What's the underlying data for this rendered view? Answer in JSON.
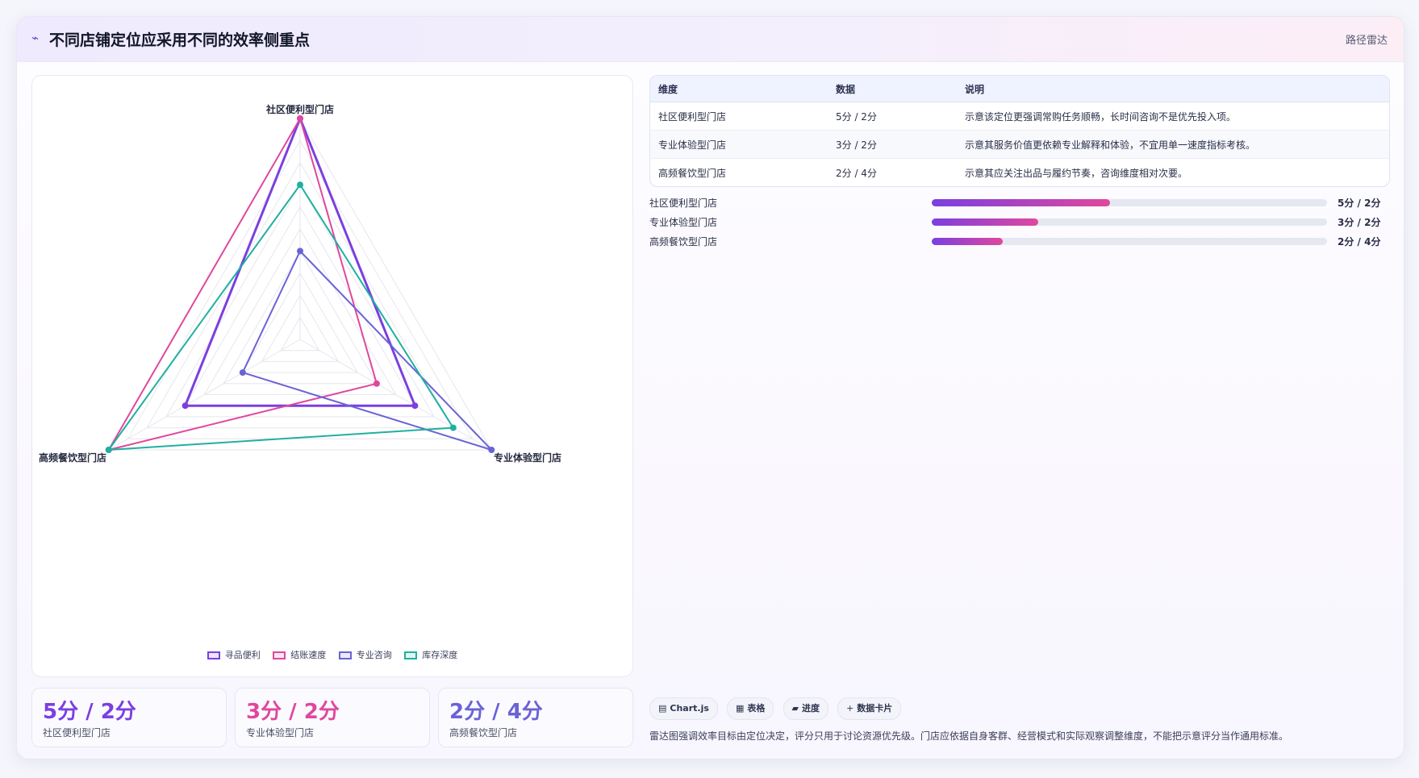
{
  "header": {
    "icon": "activity-icon",
    "title": "不同店铺定位应采用不同的效率侧重点",
    "tag": "路径雷达"
  },
  "chart_data": {
    "type": "radar",
    "axes": [
      "社区便利型门店",
      "专业体验型门店",
      "高频餐饮型门店"
    ],
    "range": [
      0,
      5
    ],
    "rings": 10,
    "series": [
      {
        "name": "寻品便利",
        "color": "#7b3fe0",
        "values": [
          5,
          3,
          3
        ]
      },
      {
        "name": "结账速度",
        "color": "#e0479e",
        "values": [
          5,
          2,
          5
        ]
      },
      {
        "name": "专业咨询",
        "color": "#6a63d6",
        "values": [
          2,
          5,
          1.5
        ]
      },
      {
        "name": "库存深度",
        "color": "#1fb0a0",
        "values": [
          3.5,
          4,
          5
        ]
      }
    ]
  },
  "table": {
    "headers": [
      "维度",
      "数据",
      "说明"
    ],
    "rows": [
      {
        "dim": "社区便利型门店",
        "data": "5分 / 2分",
        "desc": "示意该定位更强调常购任务顺畅，长时间咨询不是优先投入项。"
      },
      {
        "dim": "专业体验型门店",
        "data": "3分 / 2分",
        "desc": "示意其服务价值更依赖专业解释和体验，不宜用单一速度指标考核。"
      },
      {
        "dim": "高频餐饮型门店",
        "data": "2分 / 4分",
        "desc": "示意其应关注出品与履约节奏，咨询维度相对次要。"
      }
    ]
  },
  "progress": [
    {
      "label": "社区便利型门店",
      "value": "5分 / 2分",
      "fraction": 0.45
    },
    {
      "label": "专业体验型门店",
      "value": "3分 / 2分",
      "fraction": 0.27
    },
    {
      "label": "高频餐饮型门店",
      "value": "2分 / 4分",
      "fraction": 0.18
    }
  ],
  "kpis": [
    {
      "value": "5分 / 2分",
      "label": "社区便利型门店",
      "color": "#7b3fe0"
    },
    {
      "value": "3分 / 2分",
      "label": "专业体验型门店",
      "color": "#e0479e"
    },
    {
      "value": "2分 / 4分",
      "label": "高频餐饮型门店",
      "color": "#6a63d6"
    }
  ],
  "chips": [
    {
      "icon": "▤",
      "icon_name": "chart-icon",
      "label": "Chart.js"
    },
    {
      "icon": "▦",
      "icon_name": "table-icon",
      "label": "表格"
    },
    {
      "icon": "▰",
      "icon_name": "progress-icon",
      "label": "进度"
    },
    {
      "icon": "+",
      "icon_name": "plus-icon",
      "label": "数据卡片"
    }
  ],
  "footnote": "雷达图强调效率目标由定位决定，评分只用于讨论资源优先级。门店应依据自身客群、经营模式和实际观察调整维度，不能把示意评分当作通用标准。"
}
